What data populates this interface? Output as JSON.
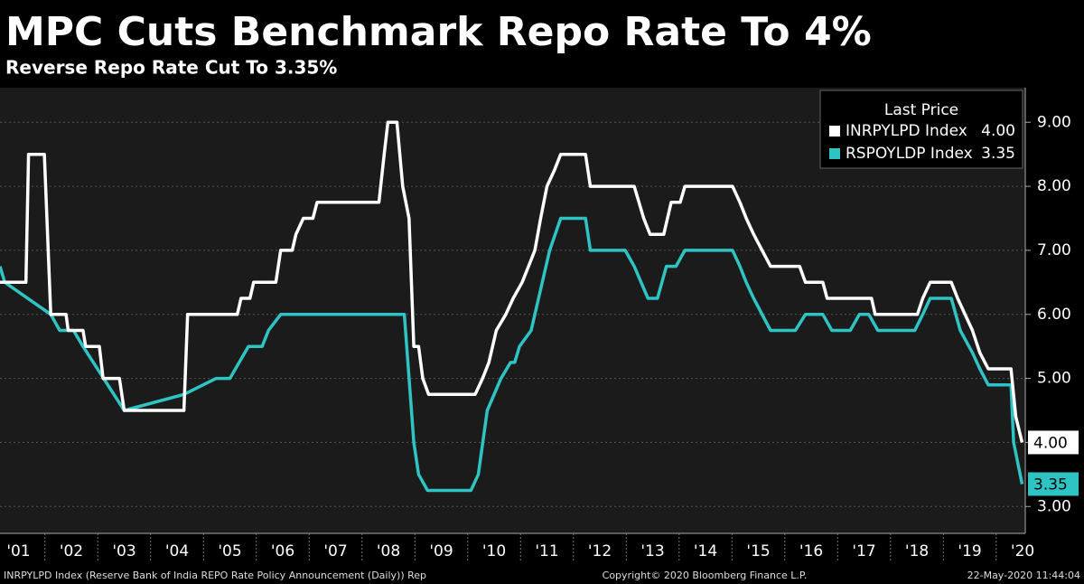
{
  "chart_data": {
    "type": "line",
    "title": "MPC Cuts Benchmark Repo Rate To 4%",
    "subtitle": "Reverse Repo Rate Cut To 3.35%",
    "legend_title": "Last Price",
    "legend_position": "upper right",
    "grid": true,
    "xlim": [
      2001.15,
      2020.55
    ],
    "xticks": [
      {
        "value": 2001,
        "label": "'01"
      },
      {
        "value": 2002,
        "label": "'02"
      },
      {
        "value": 2003,
        "label": "'03"
      },
      {
        "value": 2004,
        "label": "'04"
      },
      {
        "value": 2005,
        "label": "'05"
      },
      {
        "value": 2006,
        "label": "'06"
      },
      {
        "value": 2007,
        "label": "'07"
      },
      {
        "value": 2008,
        "label": "'08"
      },
      {
        "value": 2009,
        "label": "'09"
      },
      {
        "value": 2010,
        "label": "'10"
      },
      {
        "value": 2011,
        "label": "'11"
      },
      {
        "value": 2012,
        "label": "'12"
      },
      {
        "value": 2013,
        "label": "'13"
      },
      {
        "value": 2014,
        "label": "'14"
      },
      {
        "value": 2015,
        "label": "'15"
      },
      {
        "value": 2016,
        "label": "'16"
      },
      {
        "value": 2017,
        "label": "'17"
      },
      {
        "value": 2018,
        "label": "'18"
      },
      {
        "value": 2019,
        "label": "'19"
      },
      {
        "value": 2020,
        "label": "'20"
      }
    ],
    "ylim": [
      2.58,
      9.54
    ],
    "yticks": [
      {
        "value": 3,
        "label": "3.00"
      },
      {
        "value": 4,
        "label": "4.00"
      },
      {
        "value": 5,
        "label": "5.00"
      },
      {
        "value": 6,
        "label": "6.00"
      },
      {
        "value": 7,
        "label": "7.00"
      },
      {
        "value": 8,
        "label": "8.00"
      },
      {
        "value": 9,
        "label": "9.00"
      }
    ],
    "series": [
      {
        "name": "INRPYLPD Index",
        "color": "#ffffff",
        "last_label": "4.00",
        "x": [
          2001.15,
          2001.64,
          2001.69,
          2001.99,
          2002.11,
          2002.4,
          2002.44,
          2002.72,
          2002.77,
          2003.03,
          2003.1,
          2003.41,
          2003.5,
          2004.63,
          2004.7,
          2005.64,
          2005.71,
          2005.88,
          2005.95,
          2006.37,
          2006.46,
          2006.68,
          2006.75,
          2006.89,
          2007.07,
          2007.15,
          2008.32,
          2008.42,
          2008.49,
          2008.66,
          2008.77,
          2008.89,
          2008.98,
          2009.07,
          2009.15,
          2009.26,
          2010.14,
          2010.28,
          2010.4,
          2010.54,
          2010.72,
          2010.86,
          2011.03,
          2011.15,
          2011.27,
          2011.38,
          2011.5,
          2011.64,
          2011.76,
          2012.23,
          2012.32,
          2013.15,
          2013.33,
          2013.45,
          2013.71,
          2013.85,
          2014.02,
          2014.11,
          2015.01,
          2015.15,
          2015.27,
          2015.41,
          2015.73,
          2016.28,
          2016.39,
          2016.72,
          2016.8,
          2017.64,
          2017.71,
          2018.51,
          2018.61,
          2018.75,
          2019.15,
          2019.27,
          2019.41,
          2019.55,
          2019.69,
          2019.85,
          2020.28,
          2020.37,
          2020.49
        ],
        "values": [
          6.5,
          6.5,
          8.5,
          8.5,
          6.0,
          6.0,
          5.75,
          5.75,
          5.5,
          5.5,
          5.0,
          5.0,
          4.5,
          4.5,
          6.0,
          6.0,
          6.25,
          6.25,
          6.5,
          6.5,
          7.0,
          7.0,
          7.25,
          7.5,
          7.5,
          7.75,
          7.75,
          8.5,
          9.0,
          9.0,
          8.0,
          7.5,
          5.5,
          5.5,
          5.0,
          4.75,
          4.75,
          5.0,
          5.25,
          5.75,
          6.0,
          6.25,
          6.5,
          6.75,
          7.0,
          7.5,
          8.0,
          8.25,
          8.5,
          8.5,
          8.0,
          8.0,
          7.5,
          7.25,
          7.25,
          7.75,
          7.75,
          8.0,
          8.0,
          7.75,
          7.5,
          7.25,
          6.75,
          6.75,
          6.5,
          6.5,
          6.25,
          6.25,
          6.0,
          6.0,
          6.25,
          6.5,
          6.5,
          6.25,
          6.0,
          5.75,
          5.4,
          5.15,
          5.15,
          4.4,
          4.0
        ]
      },
      {
        "name": "RSPOYLDP Index",
        "color": "#2ec4c4",
        "last_label": "3.35",
        "x": [
          2001.15,
          2001.24,
          2002.11,
          2002.28,
          2002.54,
          2002.72,
          2003.5,
          2004.63,
          2005.24,
          2005.5,
          2005.85,
          2006.11,
          2006.23,
          2006.46,
          2008.8,
          2008.98,
          2009.07,
          2009.24,
          2010.06,
          2010.2,
          2010.37,
          2010.63,
          2010.81,
          2010.89,
          2010.98,
          2011.2,
          2011.41,
          2011.55,
          2011.76,
          2012.23,
          2012.32,
          2012.98,
          2013.15,
          2013.41,
          2013.59,
          2013.76,
          2013.94,
          2014.11,
          2015.01,
          2015.15,
          2015.27,
          2015.41,
          2015.73,
          2016.2,
          2016.39,
          2016.72,
          2016.89,
          2017.24,
          2017.41,
          2017.59,
          2017.76,
          2018.46,
          2018.61,
          2018.75,
          2019.15,
          2019.32,
          2019.55,
          2019.69,
          2019.85,
          2020.28,
          2020.33,
          2020.49
        ],
        "values": [
          6.75,
          6.5,
          6.0,
          5.75,
          5.75,
          5.5,
          4.5,
          4.75,
          5.0,
          5.0,
          5.5,
          5.5,
          5.75,
          6.0,
          6.0,
          4.0,
          3.5,
          3.25,
          3.25,
          3.5,
          4.5,
          5.0,
          5.25,
          5.25,
          5.5,
          5.75,
          6.5,
          7.0,
          7.5,
          7.5,
          7.0,
          7.0,
          6.75,
          6.25,
          6.25,
          6.75,
          6.75,
          7.0,
          7.0,
          6.75,
          6.5,
          6.25,
          5.75,
          5.75,
          6.0,
          6.0,
          5.75,
          5.75,
          6.0,
          6.0,
          5.75,
          5.75,
          6.0,
          6.25,
          6.25,
          5.75,
          5.4,
          5.15,
          4.9,
          4.9,
          4.0,
          3.35
        ]
      }
    ],
    "footer_left": "INRPYLPD Index (Reserve Bank of India REPO Rate Policy Announcement (Daily)) Rep",
    "footer_center": "Copyright© 2020 Bloomberg Finance L.P.",
    "footer_right": "22-May-2020 11:44:04"
  }
}
